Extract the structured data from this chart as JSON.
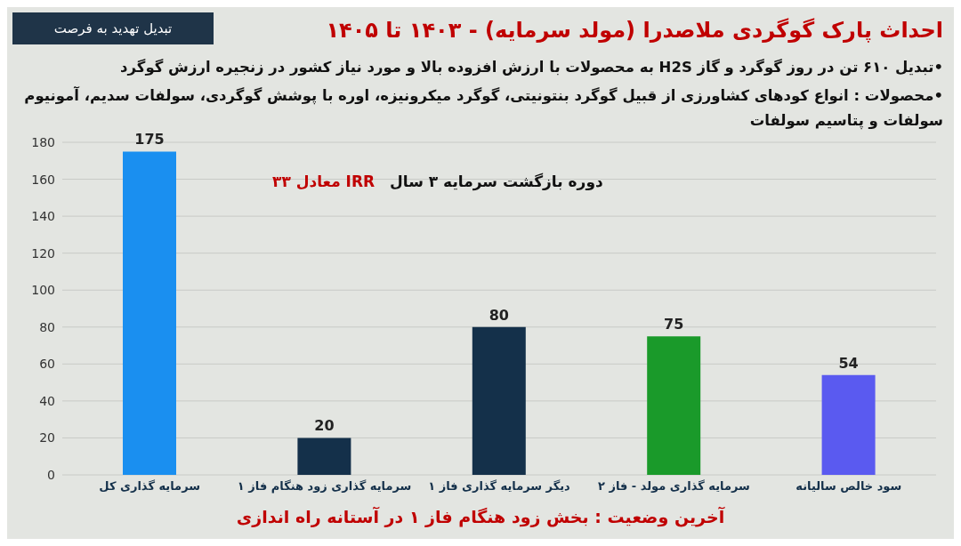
{
  "chart_data": {
    "type": "bar",
    "title": "احداث پارک گوگردی ملاصدرا (مولد سرمایه)  - ۱۴۰۳ تا ۱۴۰۵",
    "annotations": [
      "تبدیل تهدید به فرصت",
      "•تبدیل ۶۱۰ تن در روز گوگرد و گاز H2S به محصولات با ارزش افزوده بالا و مورد نیاز کشور در زنجیره ارزش گوگرد",
      "•محصولات : انواع کودهای کشاورزی از قبیل گوگرد بنتونیتی، گوگرد میکرونیزه، اوره با پوشش گوگردی، سولفات سدیم، آمونیوم سولفات و پتاسیم سولفات",
      "دوره بازگشت سرمایه ۳ سال",
      "IRR معادل ۳۳",
      "آخرین وضعیت : بخش زود هنگام فاز ۱ در آستانه راه اندازی"
    ],
    "categories": [
      "سرمایه گذاری کل",
      "سرمایه گذاری زود هنگام فاز ۱",
      "دیگر سرمایه گذاری فاز ۱",
      "سرمایه گذاری مولد - فاز ۲",
      "سود خالص سالیانه"
    ],
    "values": [
      175,
      20,
      80,
      75,
      54
    ],
    "colors": [
      "#1a8ff0",
      "#14304a",
      "#14304a",
      "#1a9a2a",
      "#5a5af0"
    ],
    "ylim": [
      0,
      180
    ],
    "yticks": [
      0,
      20,
      40,
      60,
      80,
      100,
      120,
      140,
      160,
      180
    ],
    "grid": "y",
    "data_labels": true
  }
}
